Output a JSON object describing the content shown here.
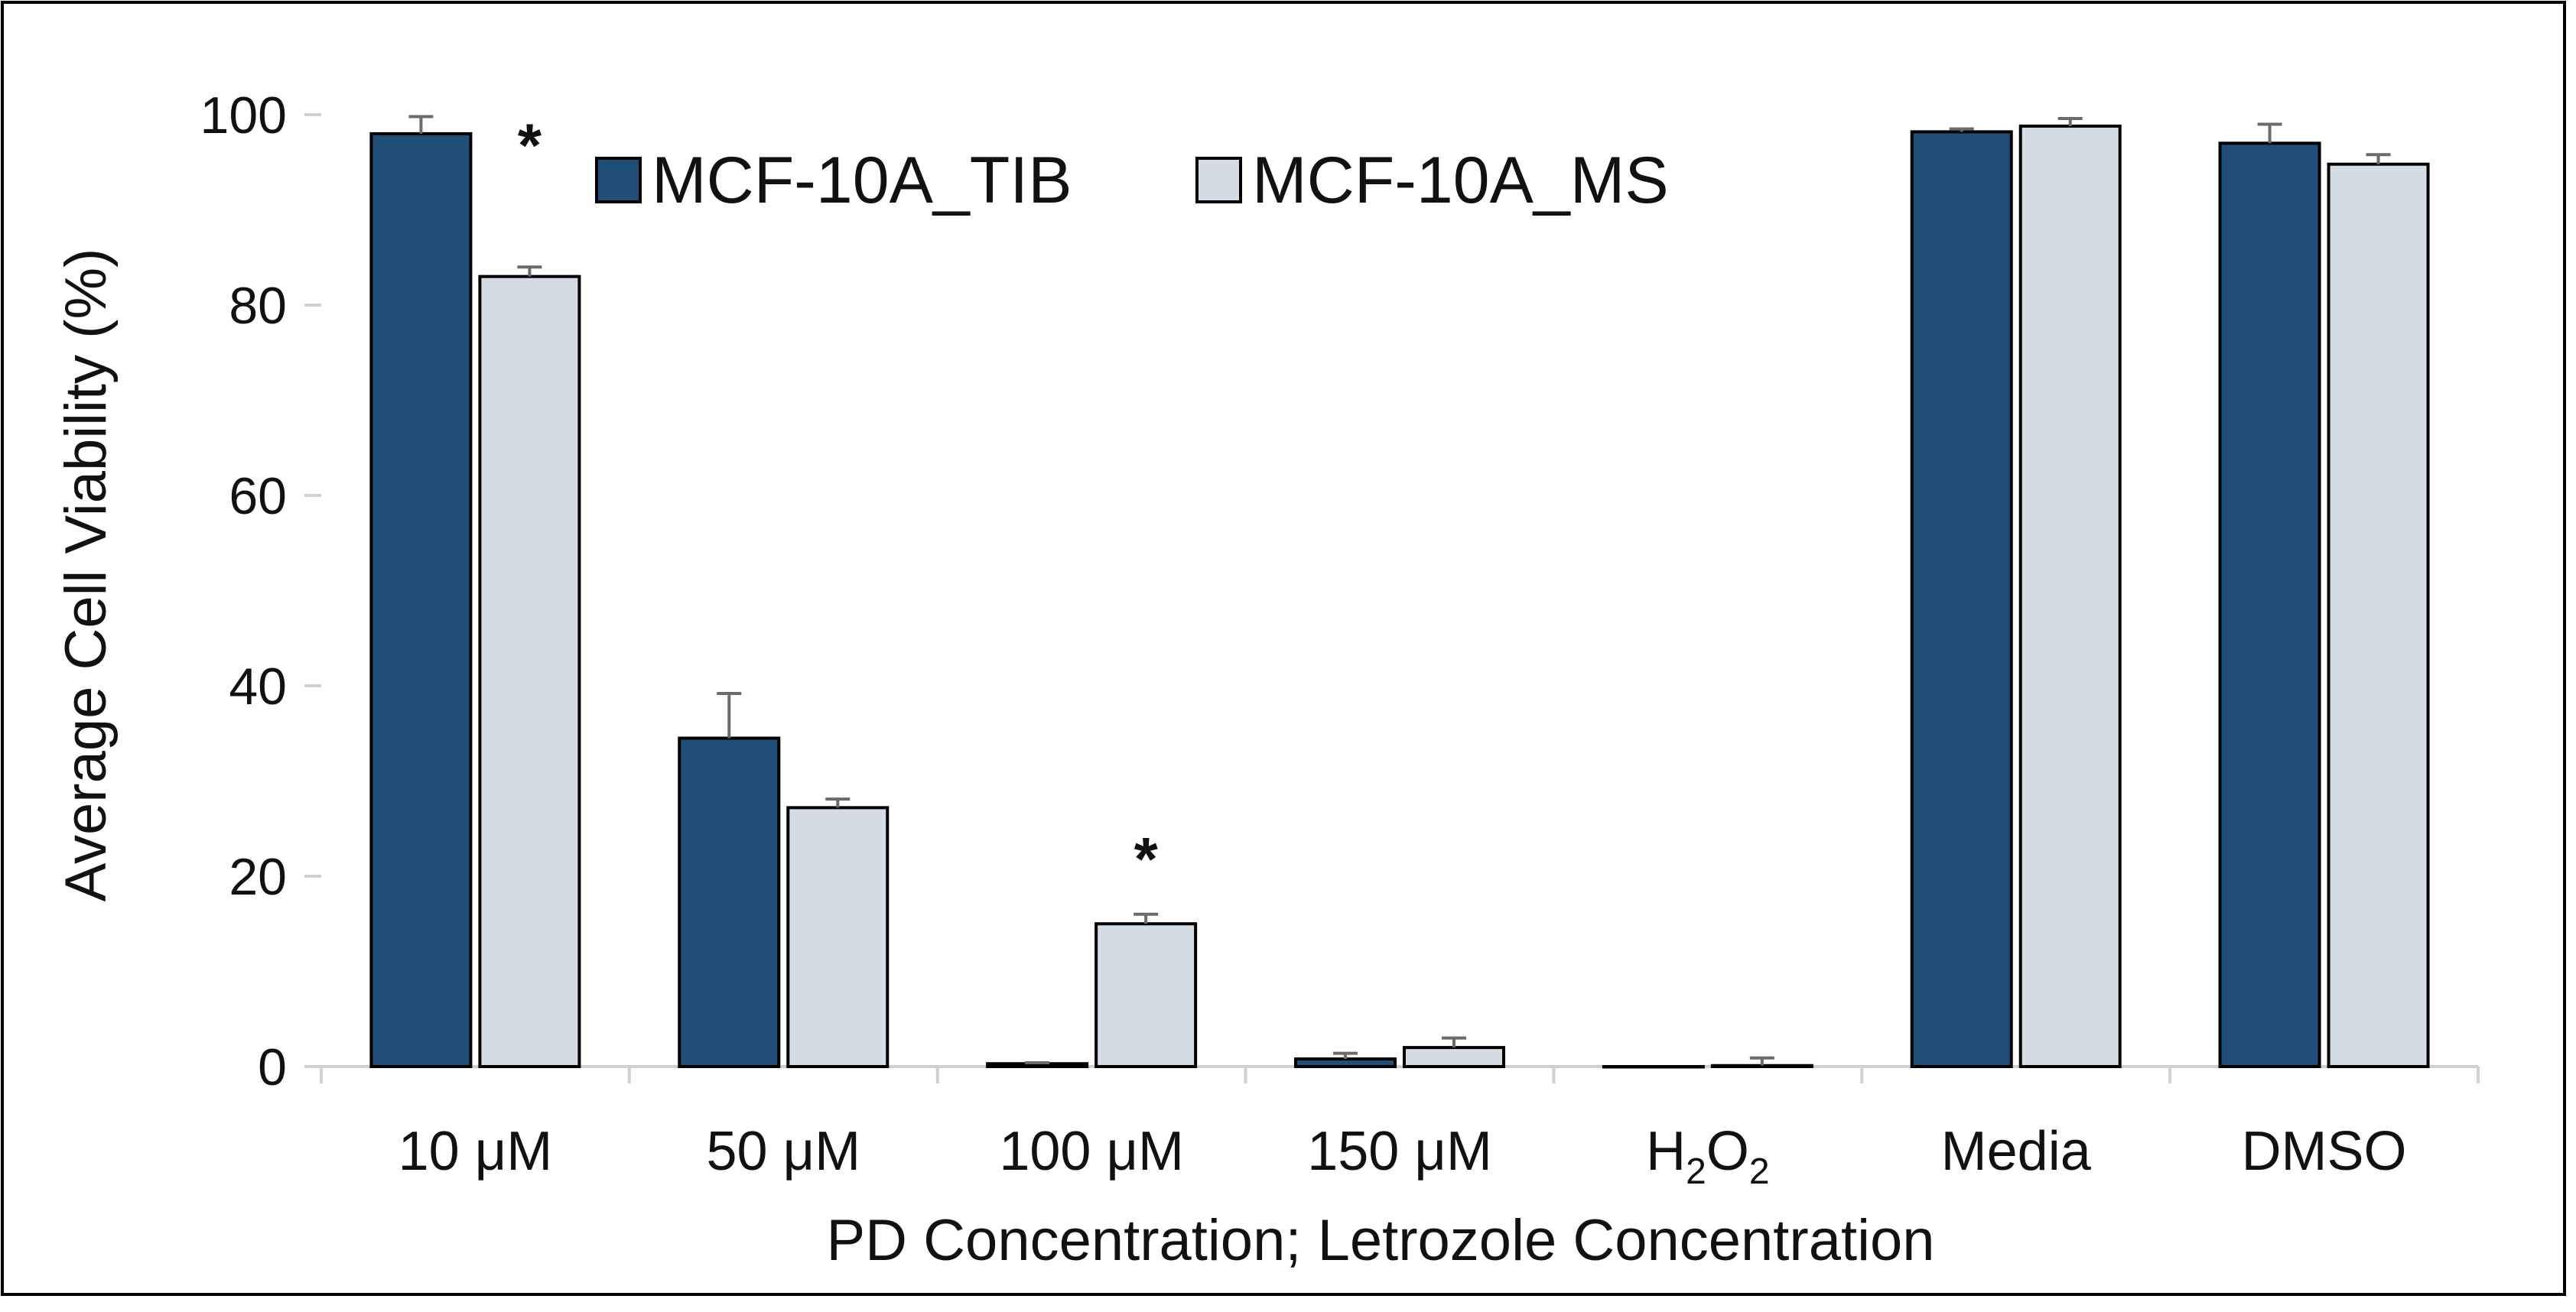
{
  "chart_data": {
    "type": "bar",
    "title": "",
    "xlabel": "PD Concentration; Letrozole Concentration",
    "ylabel": "Average Cell Viability (%)",
    "ylim": [
      0,
      100
    ],
    "yticks": [
      "0",
      "20",
      "40",
      "60",
      "80",
      "100"
    ],
    "categories": [
      {
        "base": "10 μM"
      },
      {
        "base": "50 μM"
      },
      {
        "base": "100 μM"
      },
      {
        "base": "150 μM"
      },
      {
        "base": "H",
        "sub1": "2",
        "mid": "O",
        "sub2": "2"
      },
      {
        "base": "Media"
      },
      {
        "base": "DMSO"
      }
    ],
    "series": [
      {
        "name": "MCF-10A_TIB",
        "color": "#1f4e79",
        "values": [
          98,
          34.5,
          0.3,
          0.8,
          0,
          98.2,
          97
        ],
        "errors": [
          1.8,
          4.7,
          0.1,
          0.6,
          0,
          0.3,
          2
        ]
      },
      {
        "name": "MCF-10A_MS",
        "color": "#d6dce4",
        "values": [
          83,
          27.2,
          15,
          2,
          0.1,
          98.8,
          94.8
        ],
        "errors": [
          1,
          0.9,
          1,
          1,
          0.8,
          0.8,
          1
        ]
      }
    ],
    "annotations": [
      {
        "text": "*",
        "category": "10 μM",
        "value": 97
      },
      {
        "text": "*",
        "category": "100 μM",
        "value": 22
      }
    ],
    "grid": false,
    "legend": "top-left"
  }
}
